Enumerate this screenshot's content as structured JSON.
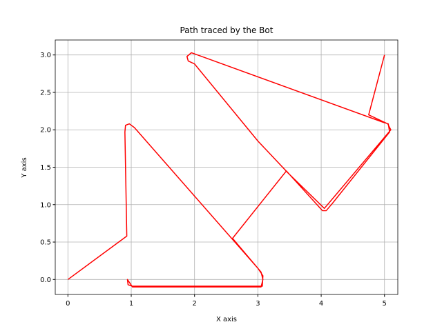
{
  "chart_data": {
    "type": "line",
    "title": "Path traced by the Bot",
    "xlabel": "X axis",
    "ylabel": "Y axis",
    "series": [
      {
        "color": "#ff0000",
        "x": [
          0,
          0.93,
          0.9,
          0.91,
          0.97,
          1.05,
          3.0,
          3.08,
          3.07,
          2.0,
          1.02,
          0.95,
          0.94,
          1.02,
          2.0,
          3.05,
          3.08,
          3.05,
          2.6,
          3.45,
          4.02,
          4.08,
          4.18,
          5.08,
          5.06,
          4.98,
          1.95,
          1.88,
          1.9,
          2.0,
          3.0,
          3.48,
          4.05,
          4.15,
          5.1,
          5.05,
          4.75,
          5.0
        ],
        "values": [
          0,
          0.58,
          1.97,
          2.06,
          2.08,
          2.03,
          0.15,
          0.05,
          -0.09,
          -0.09,
          -0.09,
          -0.07,
          0.0,
          -0.1,
          -0.1,
          -0.1,
          0.0,
          0.1,
          0.55,
          1.45,
          0.92,
          0.92,
          1.02,
          1.97,
          2.08,
          2.1,
          3.03,
          2.98,
          2.92,
          2.88,
          1.85,
          1.42,
          0.95,
          1.05,
          2.0,
          2.08,
          2.2,
          3.0
        ]
      }
    ],
    "xlim": [
      -0.2,
      5.21
    ],
    "ylim": [
      -0.2,
      3.2
    ],
    "xticks": [
      0,
      1,
      2,
      3,
      4,
      5
    ],
    "yticks": [
      {
        "value": 0,
        "label": "0.0"
      },
      {
        "value": 0.5,
        "label": "0.5"
      },
      {
        "value": 1,
        "label": "1.0"
      },
      {
        "value": 1.5,
        "label": "1.5"
      },
      {
        "value": 2,
        "label": "2.0"
      },
      {
        "value": 2.5,
        "label": "2.5"
      },
      {
        "value": 3,
        "label": "3.0"
      }
    ],
    "grid": true
  }
}
